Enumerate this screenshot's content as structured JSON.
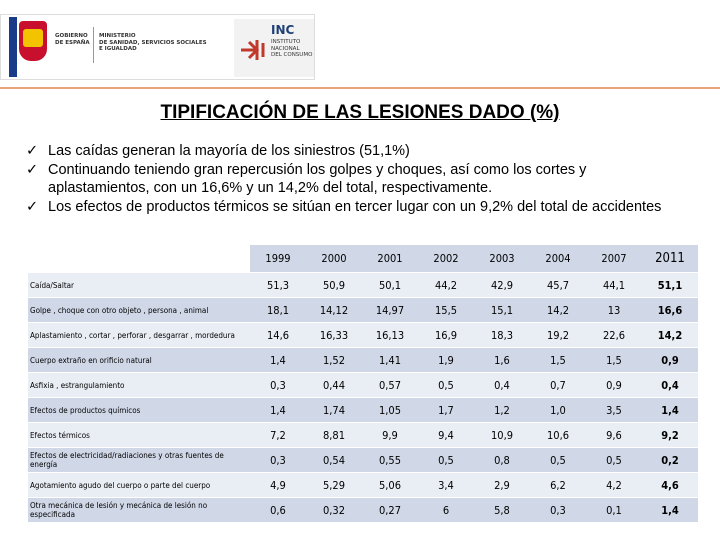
{
  "header": {
    "government": [
      "GOBIERNO",
      "DE ESPAÑA"
    ],
    "ministry": [
      "MINISTERIO",
      "DE SANIDAD, SERVICIOS SOCIALES",
      "E IGUALDAD"
    ],
    "institute_abbr": "INC",
    "institute": [
      "INSTITUTO",
      "NACIONAL",
      "DEL CONSUMO"
    ]
  },
  "title": "TIPIFICACIÓN DE LAS LESIONES DADO (%)",
  "bullets": [
    "Las caídas generan la mayoría de los siniestros (51,1%)",
    "Continuando teniendo gran repercusión los golpes y choques, así como los cortes y aplastamientos, con un 16,6% y un 14,2% del total, respectivamente.",
    "Los efectos de productos térmicos se sitúan en tercer lugar con un 9,2% del total de accidentes"
  ],
  "table": {
    "columns": [
      "1999",
      "2000",
      "2001",
      "2002",
      "2003",
      "2004",
      "2007",
      "2011"
    ],
    "rows": [
      {
        "label": "Caída/Saltar",
        "values": [
          "51,3",
          "50,9",
          "50,1",
          "44,2",
          "42,9",
          "45,7",
          "44,1",
          "51,1"
        ]
      },
      {
        "label": "Golpe , choque con otro objeto , persona , animal",
        "values": [
          "18,1",
          "14,12",
          "14,97",
          "15,5",
          "15,1",
          "14,2",
          "13",
          "16,6"
        ]
      },
      {
        "label": "Aplastamiento , cortar , perforar , desgarrar , mordedura",
        "values": [
          "14,6",
          "16,33",
          "16,13",
          "16,9",
          "18,3",
          "19,2",
          "22,6",
          "14,2"
        ]
      },
      {
        "label": "Cuerpo extraño en orificio natural",
        "values": [
          "1,4",
          "1,52",
          "1,41",
          "1,9",
          "1,6",
          "1,5",
          "1,5",
          "0,9"
        ]
      },
      {
        "label": "Asfixia , estrangulamiento",
        "values": [
          "0,3",
          "0,44",
          "0,57",
          "0,5",
          "0,4",
          "0,7",
          "0,9",
          "0,4"
        ]
      },
      {
        "label": "Efectos de productos químicos",
        "values": [
          "1,4",
          "1,74",
          "1,05",
          "1,7",
          "1,2",
          "1,0",
          "3,5",
          "1,4"
        ]
      },
      {
        "label": "Efectos térmicos",
        "values": [
          "7,2",
          "8,81",
          "9,9",
          "9,4",
          "10,9",
          "10,6",
          "9,6",
          "9,2"
        ]
      },
      {
        "label": "Efectos de electricidad/radiaciones y otras fuentes de energía",
        "values": [
          "0,3",
          "0,54",
          "0,55",
          "0,5",
          "0,8",
          "0,5",
          "0,5",
          "0,2"
        ]
      },
      {
        "label": "Agotamiento agudo del cuerpo o parte del cuerpo",
        "values": [
          "4,9",
          "5,29",
          "5,06",
          "3,4",
          "2,9",
          "6,2",
          "4,2",
          "4,6"
        ]
      },
      {
        "label": "Otra mecánica de lesión y mecánica de lesión no especificada",
        "values": [
          "0,6",
          "0,32",
          "0,27",
          "6",
          "5,8",
          "0,3",
          "0,1",
          "1,4"
        ]
      }
    ]
  }
}
